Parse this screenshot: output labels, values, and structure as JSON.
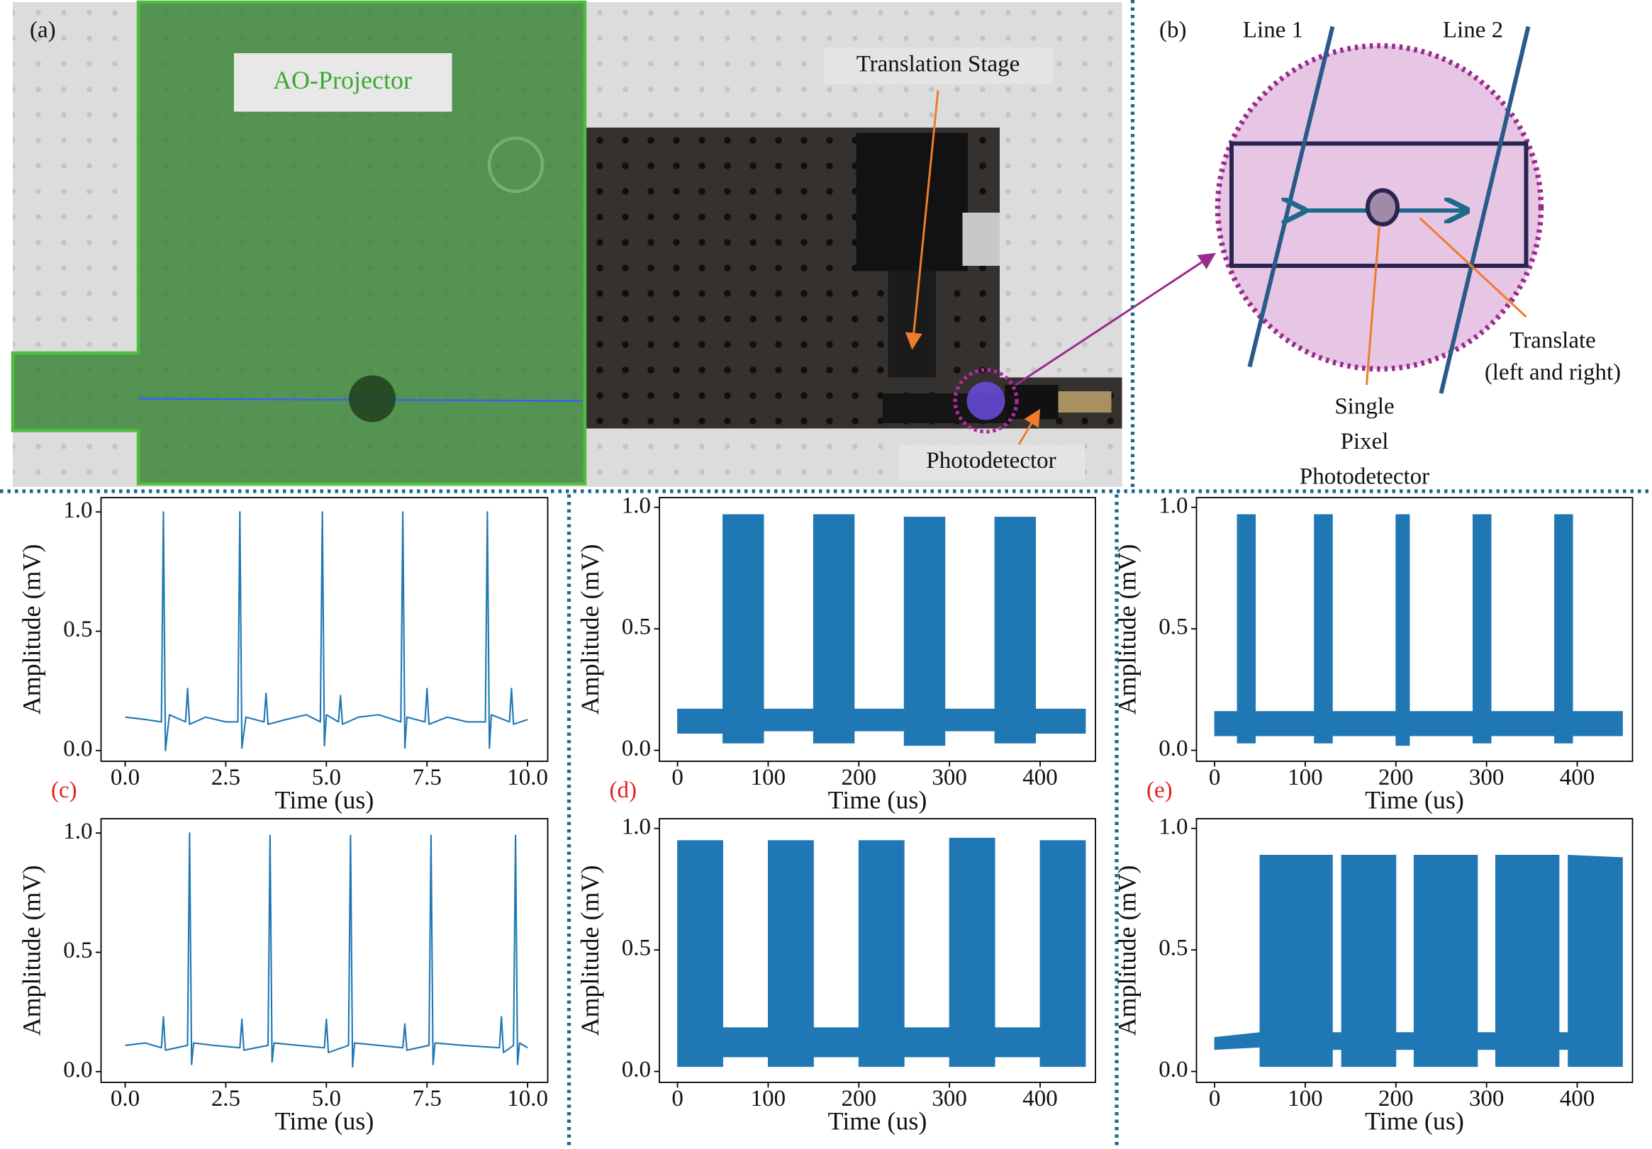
{
  "photo": {
    "panel_label": "(a)",
    "ao_label": "AO-Projector",
    "stage_label": "Translation Stage",
    "detector_label": "Photodetector"
  },
  "diagram": {
    "panel_label": "(b)",
    "line1_label": "Line 1",
    "line2_label": "Line 2",
    "translate_label": [
      "Translate",
      "(left and right)"
    ],
    "detector_label": [
      "Single",
      "Pixel",
      "Photodetector"
    ]
  },
  "chart_data": [
    {
      "type": "line",
      "panel_label": "(c)",
      "color": "#1f77b4",
      "xlabel": "Time (us)",
      "ylabel": "Amplitude (mV)",
      "xlim": [
        -0.6,
        10.5
      ],
      "ylim": [
        -0.045,
        1.06
      ],
      "xticks": [
        {
          "value": 0,
          "label": "0.0"
        },
        2.5,
        {
          "value": 5,
          "label": "5.0"
        },
        7.5,
        {
          "value": 10,
          "label": "10.0"
        }
      ],
      "yticks": [
        {
          "value": 0,
          "label": "0.0"
        },
        0.5,
        {
          "value": 1,
          "label": "1.0"
        }
      ],
      "x": [
        0,
        0.5,
        0.9,
        0.95,
        1.0,
        1.1,
        1.5,
        1.55,
        1.6,
        2.0,
        2.5,
        2.8,
        2.85,
        2.9,
        3.0,
        3.45,
        3.5,
        3.55,
        4.0,
        4.5,
        4.85,
        4.9,
        4.95,
        5.0,
        5.3,
        5.35,
        5.4,
        5.8,
        6.3,
        6.85,
        6.9,
        6.95,
        7.0,
        7.45,
        7.5,
        7.55,
        8.0,
        8.5,
        8.95,
        9.0,
        9.05,
        9.1,
        9.55,
        9.6,
        9.65,
        10.0
      ],
      "values": [
        0.14,
        0.13,
        0.12,
        1.0,
        0.0,
        0.15,
        0.12,
        0.26,
        0.11,
        0.14,
        0.12,
        0.12,
        1.0,
        0.01,
        0.14,
        0.12,
        0.24,
        0.11,
        0.13,
        0.15,
        0.12,
        1.0,
        0.02,
        0.15,
        0.12,
        0.23,
        0.11,
        0.14,
        0.15,
        0.12,
        1.0,
        0.01,
        0.14,
        0.12,
        0.26,
        0.11,
        0.14,
        0.12,
        0.12,
        1.0,
        0.01,
        0.15,
        0.12,
        0.26,
        0.11,
        0.13
      ]
    },
    {
      "type": "band",
      "panel_label": "(d)",
      "color": "#1f77b4",
      "xlabel": "Time (us)",
      "ylabel": "Amplitude (mV)",
      "xlim": [
        -20,
        461
      ],
      "ylim": [
        -0.045,
        1.04
      ],
      "xticks": [
        0,
        100,
        200,
        300,
        400
      ],
      "yticks": [
        {
          "value": 0,
          "label": "0.0"
        },
        0.5,
        {
          "value": 1,
          "label": "1.0"
        }
      ],
      "x": [
        0,
        50,
        50,
        95,
        95,
        150,
        150,
        195,
        195,
        250,
        250,
        295,
        295,
        350,
        350,
        395,
        395,
        450
      ],
      "upper": [
        0.17,
        0.17,
        0.97,
        0.97,
        0.17,
        0.17,
        0.97,
        0.97,
        0.17,
        0.17,
        0.96,
        0.96,
        0.17,
        0.17,
        0.96,
        0.96,
        0.17,
        0.17
      ],
      "lower": [
        0.07,
        0.07,
        0.03,
        0.03,
        0.08,
        0.08,
        0.03,
        0.03,
        0.08,
        0.08,
        0.02,
        0.02,
        0.08,
        0.08,
        0.03,
        0.03,
        0.07,
        0.07
      ]
    },
    {
      "type": "band",
      "panel_label": "(e)",
      "color": "#1f77b4",
      "xlabel": "Time (us)",
      "ylabel": "Amplitude (mV)",
      "xlim": [
        -20,
        461
      ],
      "ylim": [
        -0.045,
        1.04
      ],
      "xticks": [
        0,
        100,
        200,
        300,
        400
      ],
      "yticks": [
        {
          "value": 0,
          "label": "0.0"
        },
        0.5,
        {
          "value": 1,
          "label": "1.0"
        }
      ],
      "x": [
        0,
        25,
        25,
        45,
        45,
        110,
        110,
        130,
        130,
        200,
        200,
        215,
        215,
        285,
        285,
        305,
        305,
        375,
        375,
        395,
        395,
        450
      ],
      "upper": [
        0.16,
        0.16,
        0.97,
        0.97,
        0.16,
        0.16,
        0.97,
        0.97,
        0.16,
        0.16,
        0.97,
        0.97,
        0.16,
        0.16,
        0.97,
        0.97,
        0.16,
        0.16,
        0.97,
        0.97,
        0.16,
        0.16
      ],
      "lower": [
        0.06,
        0.06,
        0.03,
        0.03,
        0.06,
        0.06,
        0.03,
        0.03,
        0.06,
        0.06,
        0.02,
        0.02,
        0.06,
        0.06,
        0.03,
        0.03,
        0.06,
        0.06,
        0.03,
        0.03,
        0.06,
        0.06
      ]
    },
    {
      "type": "line",
      "color": "#1f77b4",
      "xlabel": "Time (us)",
      "ylabel": "Amplitude (mV)",
      "xlim": [
        -0.6,
        10.5
      ],
      "ylim": [
        -0.045,
        1.06
      ],
      "xticks": [
        {
          "value": 0,
          "label": "0.0"
        },
        2.5,
        {
          "value": 5,
          "label": "5.0"
        },
        7.5,
        {
          "value": 10,
          "label": "10.0"
        }
      ],
      "yticks": [
        {
          "value": 0,
          "label": "0.0"
        },
        0.5,
        {
          "value": 1,
          "label": "1.0"
        }
      ],
      "x": [
        0,
        0.5,
        0.9,
        0.95,
        1.0,
        1.55,
        1.6,
        1.65,
        1.7,
        2.2,
        2.85,
        2.9,
        2.95,
        3.55,
        3.6,
        3.65,
        3.7,
        4.3,
        4.95,
        5.0,
        5.05,
        5.55,
        5.6,
        5.65,
        5.7,
        6.3,
        6.9,
        6.95,
        7.0,
        7.55,
        7.6,
        7.65,
        7.7,
        8.4,
        9.3,
        9.35,
        9.4,
        9.65,
        9.7,
        9.75,
        9.8,
        10.0
      ],
      "values": [
        0.11,
        0.12,
        0.1,
        0.23,
        0.09,
        0.11,
        1.0,
        0.03,
        0.12,
        0.11,
        0.1,
        0.22,
        0.09,
        0.11,
        0.99,
        0.04,
        0.12,
        0.11,
        0.1,
        0.22,
        0.08,
        0.11,
        0.99,
        0.02,
        0.12,
        0.11,
        0.1,
        0.2,
        0.09,
        0.11,
        0.99,
        0.03,
        0.12,
        0.11,
        0.1,
        0.23,
        0.08,
        0.11,
        0.99,
        0.03,
        0.12,
        0.1
      ]
    },
    {
      "type": "band",
      "color": "#1f77b4",
      "xlabel": "Time (us)",
      "ylabel": "Amplitude (mV)",
      "xlim": [
        -20,
        461
      ],
      "ylim": [
        -0.045,
        1.04
      ],
      "xticks": [
        0,
        100,
        200,
        300,
        400
      ],
      "yticks": [
        {
          "value": 0,
          "label": "0.0"
        },
        0.5,
        {
          "value": 1,
          "label": "1.0"
        }
      ],
      "x": [
        0,
        50,
        50,
        100,
        100,
        150,
        150,
        200,
        200,
        250,
        250,
        300,
        300,
        350,
        350,
        400,
        400,
        450
      ],
      "upper": [
        0.95,
        0.95,
        0.18,
        0.18,
        0.95,
        0.95,
        0.18,
        0.18,
        0.95,
        0.95,
        0.18,
        0.18,
        0.96,
        0.96,
        0.18,
        0.18,
        0.95,
        0.95
      ],
      "lower": [
        0.02,
        0.02,
        0.06,
        0.06,
        0.02,
        0.02,
        0.06,
        0.06,
        0.02,
        0.02,
        0.06,
        0.06,
        0.02,
        0.02,
        0.06,
        0.06,
        0.02,
        0.02
      ]
    },
    {
      "type": "band",
      "color": "#1f77b4",
      "xlabel": "Time (us)",
      "ylabel": "Amplitude (mV)",
      "xlim": [
        -20,
        461
      ],
      "ylim": [
        -0.045,
        1.04
      ],
      "xticks": [
        0,
        100,
        200,
        300,
        400
      ],
      "yticks": [
        {
          "value": 0,
          "label": "0.0"
        },
        0.5,
        {
          "value": 1,
          "label": "1.0"
        }
      ],
      "x": [
        0,
        50,
        50,
        130,
        130,
        140,
        140,
        200,
        200,
        220,
        220,
        290,
        290,
        310,
        310,
        380,
        380,
        390,
        390,
        450
      ],
      "upper": [
        0.14,
        0.16,
        0.89,
        0.89,
        0.16,
        0.16,
        0.89,
        0.89,
        0.16,
        0.16,
        0.89,
        0.89,
        0.16,
        0.16,
        0.89,
        0.89,
        0.16,
        0.16,
        0.89,
        0.88
      ],
      "lower": [
        0.09,
        0.1,
        0.02,
        0.02,
        0.09,
        0.09,
        0.02,
        0.02,
        0.09,
        0.09,
        0.02,
        0.02,
        0.09,
        0.09,
        0.02,
        0.02,
        0.09,
        0.09,
        0.02,
        0.02
      ]
    }
  ]
}
